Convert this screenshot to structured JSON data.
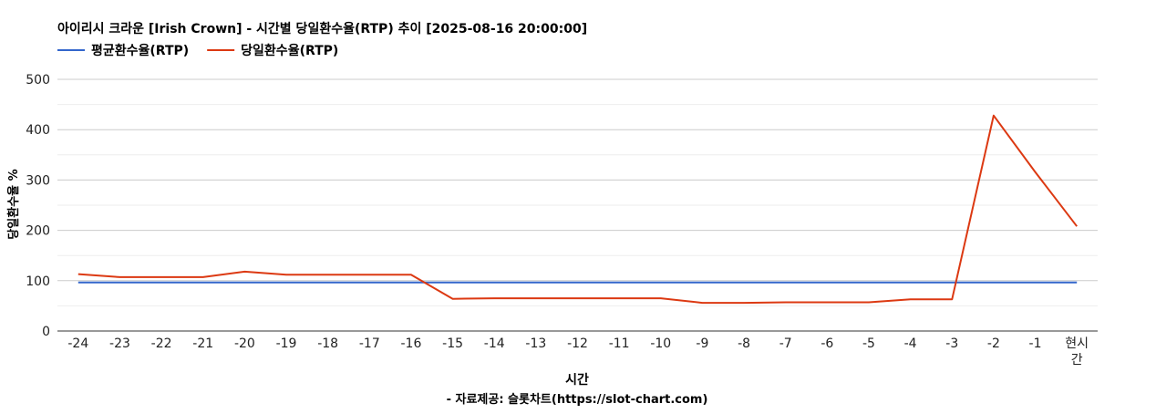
{
  "chart_data": {
    "type": "line",
    "title": "아이리시 크라운 [Irish Crown] - 시간별 당일환수율(RTP) 추이 [2025-08-16 20:00:00]",
    "xlabel": "시간",
    "ylabel": "당일환수율 %",
    "source": "- 자료제공: 슬롯차트(https://slot-chart.com)",
    "categories": [
      "-24",
      "-23",
      "-22",
      "-21",
      "-20",
      "-19",
      "-18",
      "-17",
      "-16",
      "-15",
      "-14",
      "-13",
      "-12",
      "-11",
      "-10",
      "-9",
      "-8",
      "-7",
      "-6",
      "-5",
      "-4",
      "-3",
      "-2",
      "-1",
      "현시간"
    ],
    "ylim": [
      0,
      500
    ],
    "yticks": [
      0,
      100,
      200,
      300,
      400,
      500
    ],
    "grid": true,
    "legend_position": "top-left",
    "series": [
      {
        "name": "평균환수율(RTP)",
        "color": "#3366cc",
        "values": [
          96.5,
          96.5,
          96.5,
          96.5,
          96.5,
          96.5,
          96.5,
          96.5,
          96.5,
          96.5,
          96.5,
          96.5,
          96.5,
          96.5,
          96.5,
          96.5,
          96.5,
          96.5,
          96.5,
          96.5,
          96.5,
          96.5,
          96.5,
          96.5,
          96.5
        ]
      },
      {
        "name": "당일환수율(RTP)",
        "color": "#dc3912",
        "values": [
          113,
          107,
          107,
          107,
          118,
          112,
          112,
          112,
          112,
          64,
          65,
          65,
          65,
          65,
          65,
          56,
          56,
          57,
          57,
          57,
          63,
          63,
          428,
          316,
          208
        ]
      }
    ]
  }
}
